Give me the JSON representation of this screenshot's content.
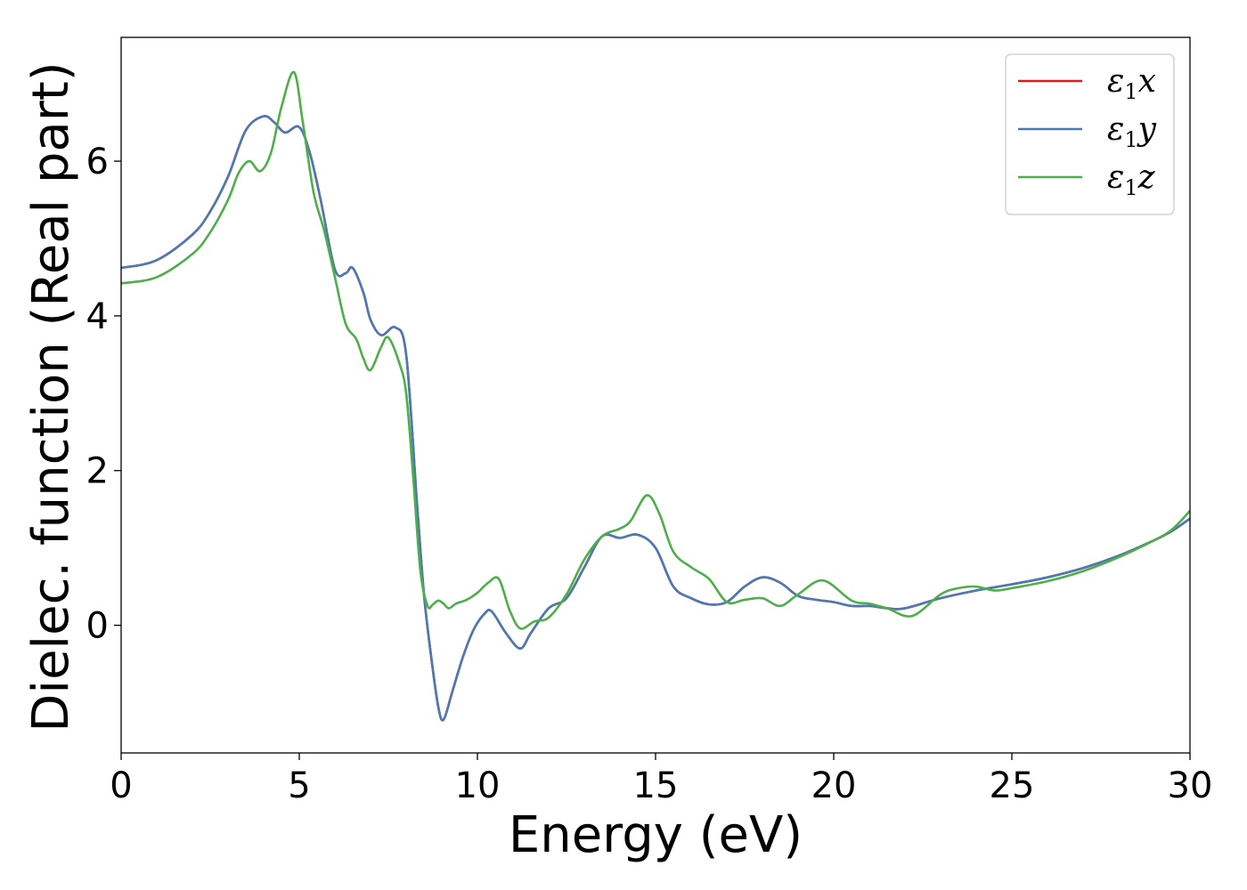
{
  "chart_data": {
    "type": "line",
    "title": "",
    "xlabel": "Energy (eV)",
    "ylabel": "Dielec. function (Real part)",
    "xlim": [
      0,
      30
    ],
    "ylim": [
      -1.65,
      7.6
    ],
    "xticks": [
      0,
      5,
      10,
      15,
      20,
      25,
      30
    ],
    "yticks": [
      0,
      2,
      4,
      6
    ],
    "xtick_labels": [
      "0",
      "5",
      "10",
      "15",
      "20",
      "25",
      "30"
    ],
    "ytick_labels": [
      "0",
      "2",
      "4",
      "6"
    ],
    "grid": false,
    "legend_position": "top-right",
    "series": [
      {
        "name": "ε1x",
        "legend": {
          "base": "ε",
          "sub": "1",
          "tail": "x"
        },
        "color": "#e41a1c",
        "x": [
          0,
          1,
          2,
          2.5,
          3,
          3.5,
          4,
          4.3,
          4.6,
          5,
          5.3,
          5.6,
          6,
          6.3,
          6.5,
          6.8,
          7,
          7.3,
          7.7,
          8,
          8.3,
          8.5,
          8.7,
          8.9,
          9.05,
          9.3,
          9.6,
          9.9,
          10.2,
          10.4,
          10.8,
          11.2,
          11.5,
          12,
          12.5,
          13,
          13.5,
          14,
          14.5,
          15,
          15.5,
          16,
          16.5,
          17,
          17.5,
          18,
          18.5,
          19,
          19.5,
          20,
          20.5,
          21,
          21.5,
          22,
          23,
          24,
          25,
          26,
          27,
          28,
          29,
          29.5,
          30
        ],
        "values": [
          4.62,
          4.72,
          5.05,
          5.35,
          5.8,
          6.4,
          6.58,
          6.5,
          6.37,
          6.44,
          6.1,
          5.5,
          4.6,
          4.55,
          4.62,
          4.3,
          3.95,
          3.75,
          3.85,
          3.5,
          1.6,
          0.4,
          -0.4,
          -1.05,
          -1.22,
          -0.85,
          -0.4,
          -0.05,
          0.15,
          0.18,
          -0.1,
          -0.3,
          -0.1,
          0.22,
          0.35,
          0.75,
          1.15,
          1.13,
          1.17,
          1.0,
          0.5,
          0.35,
          0.27,
          0.3,
          0.5,
          0.62,
          0.55,
          0.38,
          0.33,
          0.3,
          0.25,
          0.25,
          0.22,
          0.22,
          0.35,
          0.45,
          0.53,
          0.62,
          0.74,
          0.9,
          1.1,
          1.22,
          1.38
        ]
      },
      {
        "name": "ε1y",
        "legend": {
          "base": "ε",
          "sub": "1",
          "tail": "y"
        },
        "color": "#4a7ab5",
        "x": [
          0,
          1,
          2,
          2.5,
          3,
          3.5,
          4,
          4.3,
          4.6,
          5,
          5.3,
          5.6,
          6,
          6.3,
          6.5,
          6.8,
          7,
          7.3,
          7.7,
          8,
          8.3,
          8.5,
          8.7,
          8.9,
          9.05,
          9.3,
          9.6,
          9.9,
          10.2,
          10.4,
          10.8,
          11.2,
          11.5,
          12,
          12.5,
          13,
          13.5,
          14,
          14.5,
          15,
          15.5,
          16,
          16.5,
          17,
          17.5,
          18,
          18.5,
          19,
          19.5,
          20,
          20.5,
          21,
          21.5,
          22,
          23,
          24,
          25,
          26,
          27,
          28,
          29,
          29.5,
          30
        ],
        "values": [
          4.62,
          4.72,
          5.05,
          5.35,
          5.8,
          6.4,
          6.58,
          6.5,
          6.37,
          6.44,
          6.1,
          5.5,
          4.6,
          4.55,
          4.62,
          4.3,
          3.95,
          3.75,
          3.85,
          3.5,
          1.6,
          0.4,
          -0.4,
          -1.05,
          -1.22,
          -0.85,
          -0.4,
          -0.05,
          0.15,
          0.18,
          -0.1,
          -0.3,
          -0.1,
          0.22,
          0.35,
          0.75,
          1.15,
          1.13,
          1.17,
          1.0,
          0.5,
          0.35,
          0.27,
          0.3,
          0.5,
          0.62,
          0.55,
          0.38,
          0.33,
          0.3,
          0.25,
          0.25,
          0.22,
          0.22,
          0.35,
          0.45,
          0.53,
          0.62,
          0.74,
          0.9,
          1.1,
          1.22,
          1.38
        ]
      },
      {
        "name": "ε1z",
        "legend": {
          "base": "ε",
          "sub": "1",
          "tail": "z"
        },
        "color": "#4daf4a",
        "x": [
          0,
          1,
          2,
          2.5,
          3,
          3.3,
          3.6,
          3.9,
          4.2,
          4.5,
          4.85,
          5.1,
          5.4,
          5.7,
          6,
          6.3,
          6.6,
          6.8,
          7,
          7.3,
          7.5,
          7.8,
          8,
          8.2,
          8.4,
          8.6,
          8.75,
          8.9,
          9.05,
          9.2,
          9.4,
          9.7,
          10,
          10.3,
          10.6,
          10.9,
          11.2,
          11.6,
          12,
          12.5,
          13,
          13.5,
          14,
          14.3,
          14.75,
          15.1,
          15.5,
          16,
          16.5,
          17,
          17.5,
          18,
          18.5,
          19,
          19.7,
          20.5,
          21,
          21.5,
          22.2,
          23,
          23.5,
          24,
          24.5,
          25,
          26,
          27,
          28,
          29,
          29.5,
          30
        ],
        "values": [
          4.42,
          4.5,
          4.8,
          5.08,
          5.5,
          5.85,
          6.0,
          5.87,
          6.1,
          6.7,
          7.15,
          6.5,
          5.6,
          5.1,
          4.5,
          3.9,
          3.7,
          3.45,
          3.3,
          3.6,
          3.72,
          3.4,
          3.0,
          1.9,
          0.7,
          0.25,
          0.27,
          0.32,
          0.28,
          0.22,
          0.28,
          0.33,
          0.42,
          0.55,
          0.6,
          0.2,
          -0.04,
          0.05,
          0.1,
          0.4,
          0.85,
          1.15,
          1.25,
          1.35,
          1.68,
          1.45,
          0.95,
          0.75,
          0.6,
          0.3,
          0.33,
          0.35,
          0.25,
          0.4,
          0.58,
          0.32,
          0.28,
          0.22,
          0.12,
          0.4,
          0.48,
          0.5,
          0.45,
          0.48,
          0.57,
          0.7,
          0.88,
          1.1,
          1.24,
          1.48
        ]
      }
    ]
  }
}
